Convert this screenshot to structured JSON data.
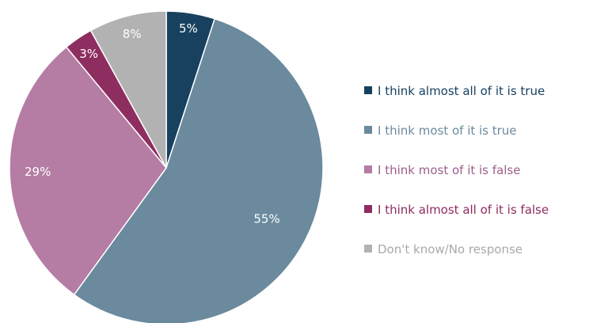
{
  "chart_data": {
    "type": "pie",
    "title": "",
    "legend_position": "right",
    "slices": [
      {
        "label": "I think almost all of it is true",
        "value": 5,
        "value_label": "5%",
        "color": "#17415F"
      },
      {
        "label": "I think most of it is true",
        "value": 55,
        "value_label": "55%",
        "color": "#6B8A9E"
      },
      {
        "label": "I think most of it is false",
        "value": 29,
        "value_label": "29%",
        "color": "#B57DA3"
      },
      {
        "label": "I think almost all of it is false",
        "value": 3,
        "value_label": "3%",
        "color": "#8E2D60"
      },
      {
        "label": "Don't know/No response",
        "value": 8,
        "value_label": "8%",
        "color": "#B2B2B2"
      }
    ],
    "legend_text_colors": [
      "#17415F",
      "#6B8A9E",
      "#9B5F89",
      "#8E2D60",
      "#A9A9A9"
    ],
    "value_label_color": "#FFFFFF"
  }
}
